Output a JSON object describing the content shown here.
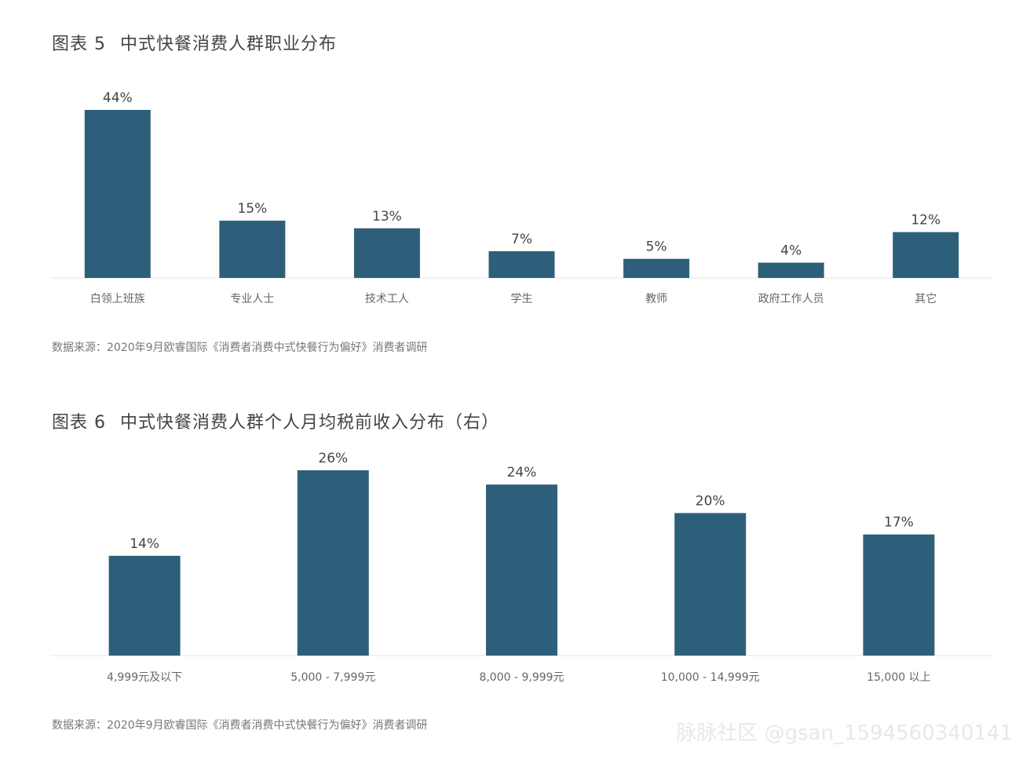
{
  "chart_data": [
    {
      "type": "bar",
      "title_num": "图表 5",
      "title": "中式快餐消费人群职业分布",
      "categories": [
        "白领上班族",
        "专业人士",
        "技术工人",
        "学生",
        "教师",
        "政府工作人员",
        "其它"
      ],
      "values": [
        44,
        15,
        13,
        7,
        5,
        4,
        12
      ],
      "value_labels": [
        "44%",
        "15%",
        "13%",
        "7%",
        "5%",
        "4%",
        "12%"
      ],
      "ylim": [
        0,
        44
      ],
      "grid": false,
      "bar_color": "#2e5f7a",
      "source": "数据来源：2020年9月欧睿国际《消费者消费中式快餐行为偏好》消费者调研"
    },
    {
      "type": "bar",
      "title_num": "图表 6",
      "title": "中式快餐消费人群个人月均税前收入分布（右）",
      "categories": [
        "4,999元及以下",
        "5,000 - 7,999元",
        "8,000 - 9,999元",
        "10,000 - 14,999元",
        "15,000 以上"
      ],
      "values": [
        14,
        26,
        24,
        20,
        17
      ],
      "value_labels": [
        "14%",
        "26%",
        "24%",
        "20%",
        "17%"
      ],
      "ylim": [
        0,
        26
      ],
      "grid": false,
      "bar_color": "#2e5f7a",
      "source": "数据来源：2020年9月欧睿国际《消费者消费中式快餐行为偏好》消费者调研"
    }
  ],
  "watermark": "脉脉社区 @gsan_1594560340141"
}
